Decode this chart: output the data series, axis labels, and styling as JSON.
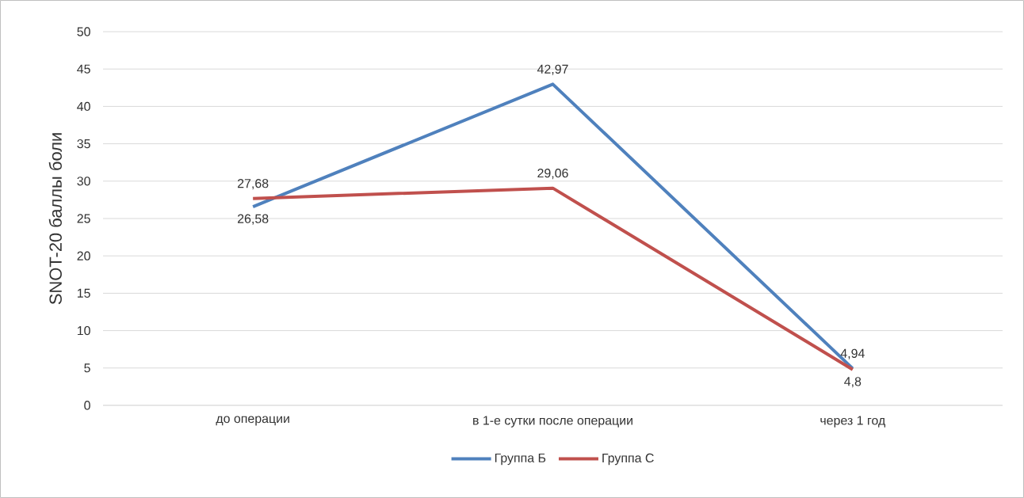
{
  "chart_data": {
    "type": "line",
    "ylabel": "SNOT-20 баллы боли",
    "categories": [
      "до операции",
      "в 1-е сутки после операции",
      "через 1 год"
    ],
    "series": [
      {
        "name": "Группа Б",
        "color": "#4f81bd",
        "values": [
          26.58,
          42.97,
          4.94
        ],
        "value_labels": [
          "26,58",
          "42,97",
          "4,94"
        ]
      },
      {
        "name": "Группа С",
        "color": "#c0504d",
        "values": [
          27.68,
          29.06,
          4.8
        ],
        "value_labels": [
          "27,68",
          "29,06",
          "4,8"
        ]
      }
    ],
    "ylim": [
      0,
      50
    ],
    "yticks": [
      0,
      5,
      10,
      15,
      20,
      25,
      30,
      35,
      40,
      45,
      50
    ],
    "grid": "y",
    "legend": "bottom",
    "marker": "none",
    "line_style": "solid"
  }
}
